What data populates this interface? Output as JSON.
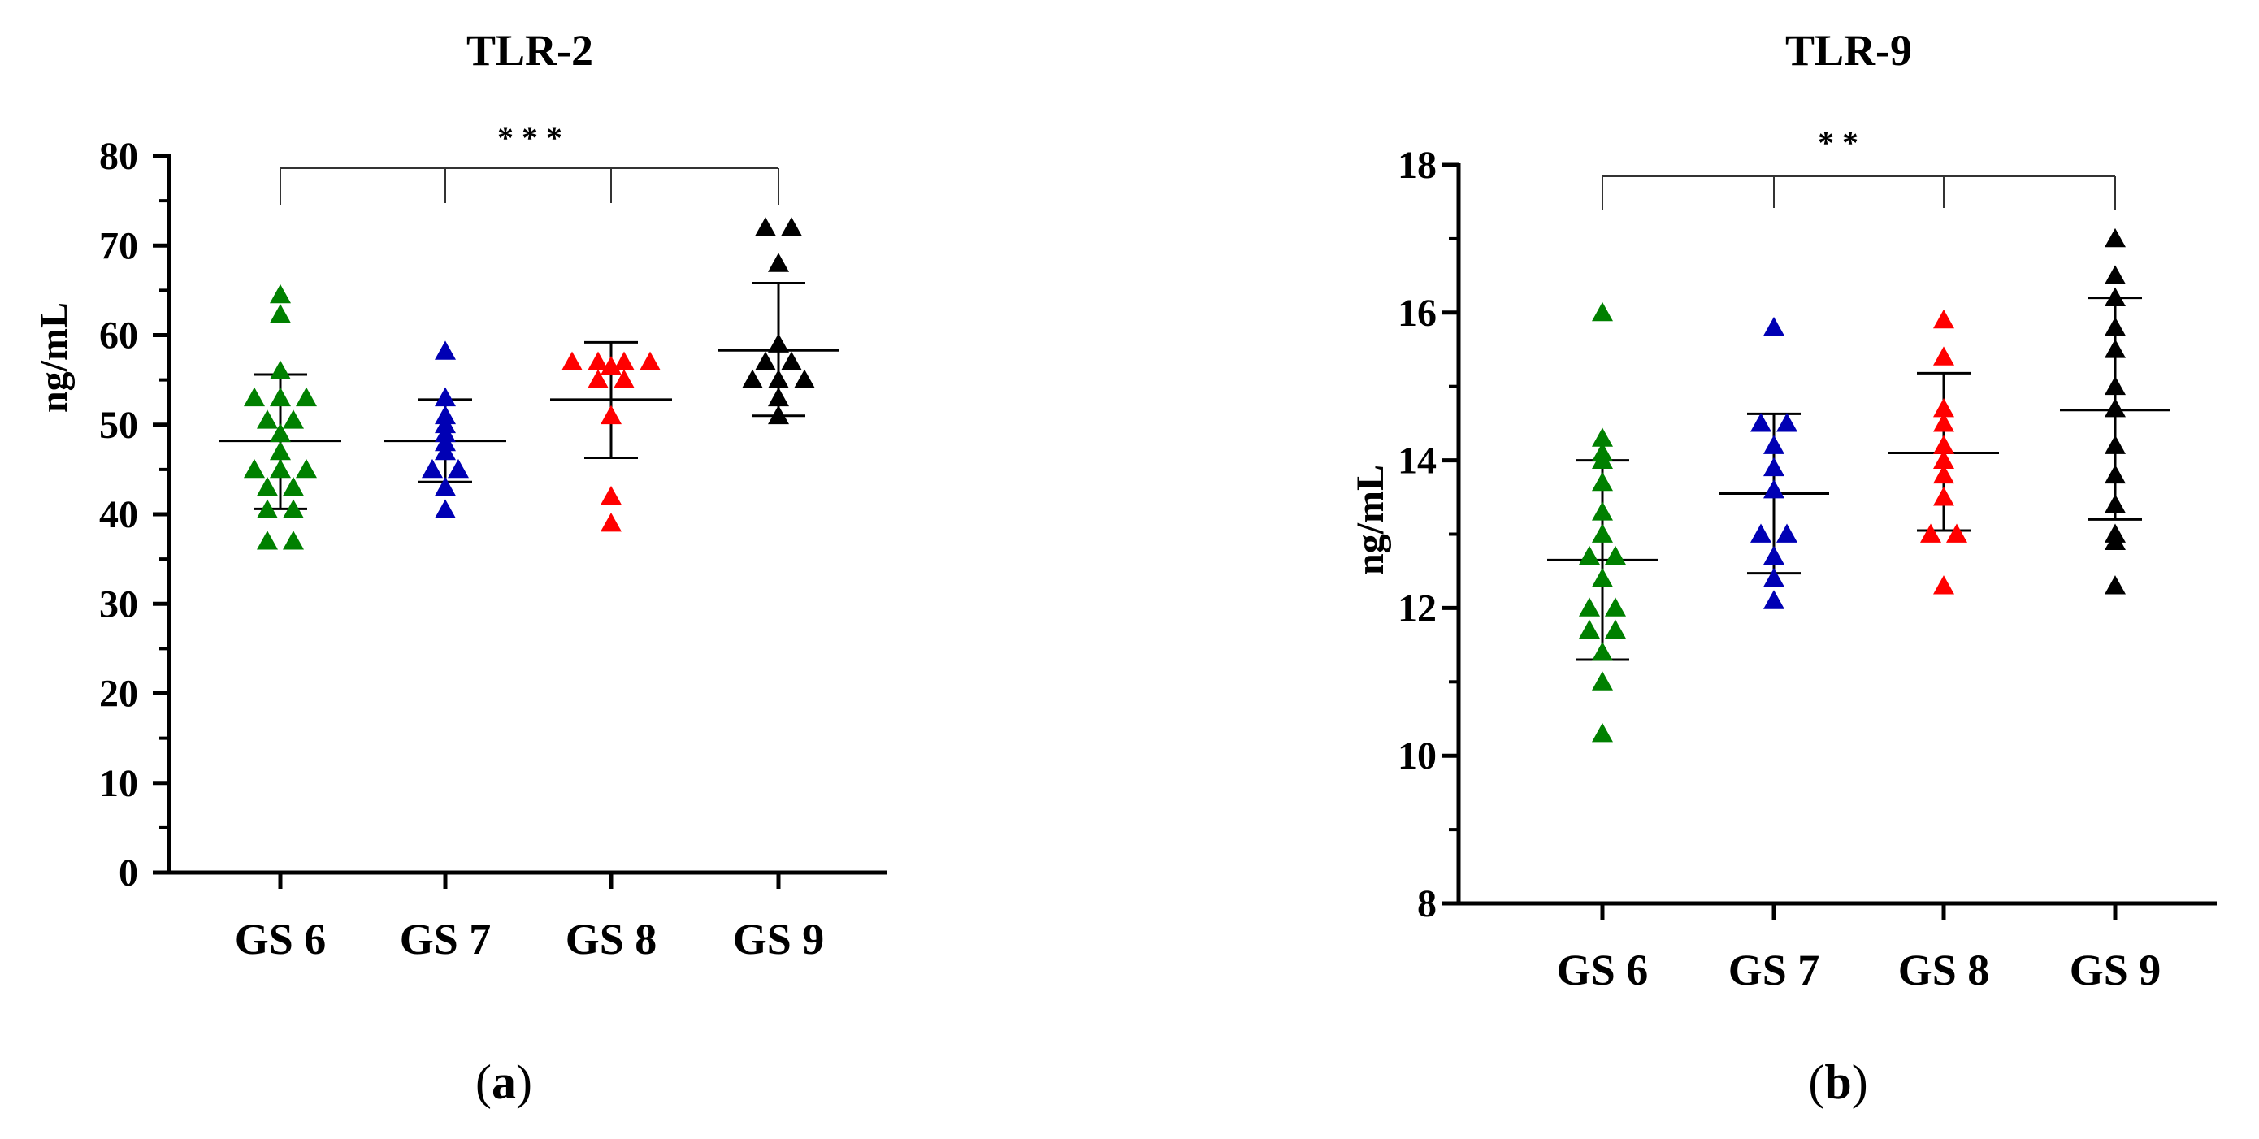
{
  "chart_data": [
    {
      "type": "scatter",
      "title": "TLR-2",
      "ylabel": "ng/mL",
      "xlabel": "",
      "ylim": [
        0,
        80
      ],
      "yticks": [
        "0",
        "10",
        "20",
        "30",
        "40",
        "50",
        "60",
        "70",
        "80"
      ],
      "categories": [
        "GS 6",
        "GS 7",
        "GS 8",
        "GS 9"
      ],
      "significance": "* * *",
      "panel_prefix": "(",
      "panel_letter": "a",
      "panel_suffix": ")",
      "series": [
        {
          "category": "GS 6",
          "color": "#008000",
          "mean": 48.2,
          "sd_low": 40.6,
          "sd_high": 55.6,
          "values": [
            64.5,
            62.3,
            56.0,
            53.0,
            53.0,
            53.0,
            50.5,
            50.5,
            49.0,
            47.0,
            45.0,
            45.0,
            45.0,
            43.0,
            43.0,
            40.5,
            40.5,
            37.0,
            37.0
          ]
        },
        {
          "category": "GS 7",
          "color": "#0000B4",
          "mean": 48.2,
          "sd_low": 43.6,
          "sd_high": 52.8,
          "values": [
            58.2,
            53.0,
            51.0,
            50.0,
            49.0,
            48.0,
            47.0,
            45.0,
            45.0,
            43.0,
            40.5
          ]
        },
        {
          "category": "GS 8",
          "color": "#FF0000",
          "mean": 52.8,
          "sd_low": 46.3,
          "sd_high": 59.2,
          "values": [
            57.0,
            57.0,
            57.0,
            57.0,
            56.5,
            55.0,
            55.0,
            51.0,
            42.0,
            39.0
          ]
        },
        {
          "category": "GS 9",
          "color": "#000000",
          "mean": 58.3,
          "sd_low": 51.0,
          "sd_high": 65.8,
          "values": [
            72.0,
            72.0,
            68.0,
            59.0,
            57.0,
            57.0,
            55.0,
            55.0,
            55.0,
            53.0,
            51.0
          ]
        }
      ]
    },
    {
      "type": "scatter",
      "title": "TLR-9",
      "ylabel": "ng/mL",
      "xlabel": "",
      "ylim": [
        8,
        18
      ],
      "yticks": [
        "8",
        "10",
        "12",
        "14",
        "16",
        "18"
      ],
      "categories": [
        "GS 6",
        "GS 7",
        "GS 8",
        "GS 9"
      ],
      "significance": "* *",
      "panel_prefix": "(",
      "panel_letter": "b",
      "panel_suffix": ")",
      "series": [
        {
          "category": "GS 6",
          "color": "#008000",
          "mean": 12.65,
          "sd_low": 11.3,
          "sd_high": 14.0,
          "values": [
            16.0,
            14.3,
            14.1,
            14.0,
            13.7,
            13.3,
            13.0,
            12.7,
            12.7,
            12.4,
            12.0,
            12.0,
            11.7,
            11.7,
            11.4,
            11.0,
            10.3
          ]
        },
        {
          "category": "GS 7",
          "color": "#0000B4",
          "mean": 13.55,
          "sd_low": 12.47,
          "sd_high": 14.63,
          "values": [
            15.8,
            14.5,
            14.5,
            14.2,
            13.9,
            13.6,
            13.0,
            13.0,
            12.7,
            12.4,
            12.1
          ]
        },
        {
          "category": "GS 8",
          "color": "#FF0000",
          "mean": 14.1,
          "sd_low": 13.05,
          "sd_high": 15.18,
          "values": [
            15.9,
            15.4,
            14.7,
            14.5,
            14.2,
            14.0,
            13.8,
            13.5,
            13.0,
            13.0,
            12.3
          ]
        },
        {
          "category": "GS 9",
          "color": "#000000",
          "mean": 14.68,
          "sd_low": 13.2,
          "sd_high": 16.2,
          "values": [
            17.0,
            16.5,
            16.2,
            15.8,
            15.5,
            15.0,
            14.7,
            14.2,
            13.8,
            13.4,
            13.0,
            12.9,
            12.3
          ]
        }
      ]
    }
  ]
}
